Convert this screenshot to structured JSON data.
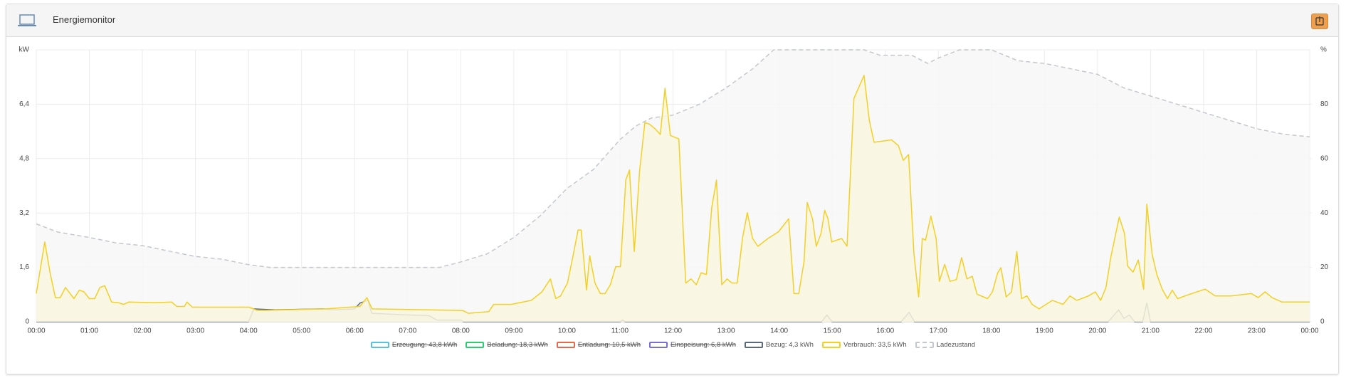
{
  "header": {
    "title": "Energiemonitor"
  },
  "chart_data": {
    "type": "line",
    "ylabel": "kW",
    "y2label": "%",
    "xlim": [
      0,
      24
    ],
    "xticks": [
      {
        "value": 0,
        "label": "00:00"
      },
      {
        "value": 1,
        "label": "01:00"
      },
      {
        "value": 2,
        "label": "02:00"
      },
      {
        "value": 3,
        "label": "03:00"
      },
      {
        "value": 4,
        "label": "04:00"
      },
      {
        "value": 5,
        "label": "05:00"
      },
      {
        "value": 6,
        "label": "06:00"
      },
      {
        "value": 7,
        "label": "07:00"
      },
      {
        "value": 8,
        "label": "08:00"
      },
      {
        "value": 9,
        "label": "09:00"
      },
      {
        "value": 10,
        "label": "10:00"
      },
      {
        "value": 11,
        "label": "11:00"
      },
      {
        "value": 12,
        "label": "12:00"
      },
      {
        "value": 13,
        "label": "13:00"
      },
      {
        "value": 14,
        "label": "14:00"
      },
      {
        "value": 15,
        "label": "15:00"
      },
      {
        "value": 16,
        "label": "16:00"
      },
      {
        "value": 17,
        "label": "17:00"
      },
      {
        "value": 18,
        "label": "18:00"
      },
      {
        "value": 19,
        "label": "19:00"
      },
      {
        "value": 20,
        "label": "20:00"
      },
      {
        "value": 21,
        "label": "21:00"
      },
      {
        "value": 22,
        "label": "22:00"
      },
      {
        "value": 23,
        "label": "23:00"
      },
      {
        "value": 24,
        "label": "00:00"
      }
    ],
    "ylim": [
      0,
      8
    ],
    "yticks": [
      0,
      {
        "value": 1.6,
        "label": "1,6"
      },
      {
        "value": 3.2,
        "label": "3,2"
      },
      {
        "value": 4.8,
        "label": "4,8"
      },
      {
        "value": 6.4,
        "label": "6,4"
      }
    ],
    "y2lim": [
      0,
      100
    ],
    "y2ticks": [
      0,
      20,
      40,
      60,
      80
    ],
    "grid": true,
    "series": [
      {
        "name": "Erzeugung: 43,8 kWh",
        "color": "#5bc0de",
        "hidden": true
      },
      {
        "name": "Beladung: 18,3 kWh",
        "color": "#2ecc71",
        "hidden": true
      },
      {
        "name": "Entladung: 10,5 kWh",
        "color": "#e8694a",
        "hidden": true
      },
      {
        "name": "Einspeisung: 6,8 kWh",
        "color": "#7b6fd0",
        "hidden": true
      },
      {
        "name": "Bezug: 4,3 kWh",
        "color": "#5a6a78",
        "fill": "#e6e6e6",
        "x": [
          0,
          4,
          4.1,
          4.5,
          5.4,
          5.6,
          6.0,
          6.1,
          6.25,
          6.32,
          7.0,
          7.4,
          7.55,
          8.0,
          8.05,
          11.0,
          11.05,
          11.1,
          14.8,
          14.9,
          15.0,
          16.3,
          16.45,
          16.55,
          20.2,
          20.4,
          20.5,
          20.6,
          20.7,
          20.85,
          20.93,
          21.0,
          24
        ],
        "values": [
          0,
          0,
          0.38,
          0.35,
          0.38,
          0.35,
          0.38,
          0.55,
          0.63,
          0.25,
          0.2,
          0.18,
          0.05,
          0.05,
          0,
          0,
          0.05,
          0,
          0,
          0.2,
          0,
          0,
          0.28,
          0,
          0,
          0.35,
          0.1,
          0.2,
          0,
          0,
          0.55,
          0,
          0
        ]
      },
      {
        "name": "Verbrauch: 33,5 kWh",
        "color": "#f2d024",
        "fill": "#faf6e0",
        "x": [
          0,
          0.16,
          0.26,
          0.36,
          0.45,
          0.55,
          0.71,
          0.81,
          0.9,
          1.0,
          1.1,
          1.2,
          1.29,
          1.42,
          1.55,
          1.65,
          1.74,
          2.23,
          2.55,
          2.65,
          2.79,
          2.84,
          2.94,
          4.01,
          4.17,
          5.46,
          6.1,
          6.23,
          6.33,
          7.4,
          8.04,
          8.14,
          8.53,
          8.62,
          8.95,
          9.33,
          9.53,
          9.69,
          9.79,
          9.88,
          10.01,
          10.11,
          10.21,
          10.27,
          10.37,
          10.43,
          10.53,
          10.63,
          10.72,
          10.82,
          10.92,
          11.01,
          11.11,
          11.18,
          11.27,
          11.37,
          11.47,
          11.56,
          11.66,
          11.76,
          11.85,
          11.95,
          12.11,
          12.24,
          12.34,
          12.44,
          12.53,
          12.63,
          12.73,
          12.82,
          12.92,
          13.02,
          13.11,
          13.21,
          13.31,
          13.4,
          13.5,
          13.6,
          13.79,
          13.99,
          14.18,
          14.28,
          14.37,
          14.47,
          14.53,
          14.63,
          14.7,
          14.79,
          14.86,
          14.92,
          14.99,
          15.18,
          15.28,
          15.41,
          15.6,
          15.7,
          15.79,
          16.12,
          16.25,
          16.34,
          16.44,
          16.54,
          16.63,
          16.7,
          16.76,
          16.86,
          16.96,
          17.02,
          17.12,
          17.22,
          17.34,
          17.44,
          17.54,
          17.64,
          17.73,
          17.93,
          18.02,
          18.12,
          18.18,
          18.28,
          18.38,
          18.48,
          18.57,
          18.67,
          18.77,
          18.9,
          19.15,
          19.35,
          19.48,
          19.61,
          19.83,
          19.96,
          20.06,
          20.16,
          20.25,
          20.41,
          20.51,
          20.57,
          20.67,
          20.77,
          20.87,
          20.93,
          21.03,
          21.12,
          21.22,
          21.32,
          21.41,
          21.51,
          21.74,
          22.03,
          22.22,
          22.51,
          22.9,
          23.03,
          23.16,
          23.29,
          23.48,
          24.0
        ],
        "values": [
          0.83,
          2.35,
          1.44,
          0.71,
          0.71,
          1.01,
          0.68,
          0.93,
          0.88,
          0.68,
          0.68,
          1.01,
          1.06,
          0.58,
          0.56,
          0.51,
          0.58,
          0.56,
          0.58,
          0.45,
          0.45,
          0.58,
          0.43,
          0.43,
          0.33,
          0.38,
          0.45,
          0.71,
          0.38,
          0.35,
          0.33,
          0.25,
          0.3,
          0.51,
          0.51,
          0.63,
          0.88,
          1.26,
          0.68,
          0.76,
          1.14,
          1.89,
          2.7,
          2.7,
          0.93,
          1.94,
          1.14,
          0.83,
          0.83,
          1.09,
          1.62,
          1.62,
          4.17,
          4.47,
          2.07,
          4.42,
          5.86,
          5.81,
          5.68,
          5.51,
          6.87,
          5.48,
          5.38,
          1.14,
          1.26,
          1.09,
          1.44,
          1.39,
          3.36,
          4.17,
          1.09,
          1.26,
          1.14,
          1.14,
          2.45,
          3.21,
          2.45,
          2.22,
          2.45,
          2.65,
          3.03,
          0.83,
          0.83,
          1.77,
          3.51,
          3.03,
          2.22,
          2.6,
          3.28,
          3.03,
          2.35,
          2.45,
          2.22,
          6.57,
          7.25,
          5.93,
          5.28,
          5.35,
          5.18,
          4.75,
          4.92,
          2.02,
          0.73,
          2.45,
          2.4,
          3.11,
          2.45,
          1.19,
          1.69,
          1.19,
          1.24,
          1.89,
          1.26,
          1.34,
          0.81,
          0.68,
          0.88,
          1.44,
          1.59,
          0.73,
          0.88,
          2.07,
          0.68,
          0.76,
          0.51,
          0.38,
          0.63,
          0.51,
          0.76,
          0.63,
          0.76,
          0.88,
          0.63,
          1.01,
          1.89,
          3.08,
          2.6,
          1.64,
          1.46,
          1.82,
          0.96,
          3.46,
          1.99,
          1.39,
          0.96,
          0.68,
          0.93,
          0.68,
          0.81,
          0.96,
          0.76,
          0.76,
          0.83,
          0.71,
          0.88,
          0.71,
          0.58,
          0.58
        ]
      },
      {
        "name": "Ladezustand",
        "color": "#c4c8cc",
        "fill": "#f7f7f7",
        "axis": "y2",
        "dashed": true,
        "x": [
          0,
          0.4,
          1,
          1.5,
          2,
          2.5,
          3,
          3.5,
          4,
          4.4,
          7.6,
          8,
          8.5,
          9,
          9.5,
          10,
          10.5,
          11,
          11.3,
          11.6,
          12,
          12.5,
          13,
          13.5,
          13.9,
          15.6,
          15.9,
          16.5,
          16.8,
          17,
          17.4,
          18,
          18.5,
          19,
          19.5,
          20,
          20.5,
          21,
          21.5,
          22,
          22.5,
          23,
          23.5,
          24
        ],
        "values": [
          36,
          33,
          31,
          29,
          28,
          26,
          24,
          23,
          21,
          20,
          20,
          22,
          25,
          31,
          39,
          49,
          56,
          67,
          72,
          75,
          76,
          80,
          86,
          93,
          100,
          100,
          98,
          98,
          95,
          97,
          100,
          100,
          96,
          95,
          93,
          91,
          86,
          83,
          80,
          77,
          74,
          71,
          69,
          68
        ]
      }
    ]
  }
}
